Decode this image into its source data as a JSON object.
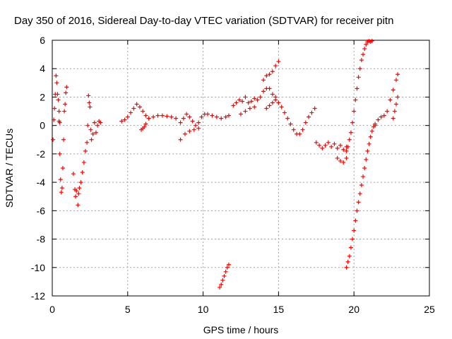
{
  "chart_data": {
    "type": "scatter",
    "title": "Day 350 of 2016, Sidereal Day-to-day VTEC variation (SDTVAR) for receiver pitn",
    "xlabel": "GPS time / hours",
    "ylabel": "SDTVAR / TECUs",
    "xlim": [
      0,
      25
    ],
    "ylim": [
      -12,
      6
    ],
    "xticks": [
      0,
      5,
      10,
      15,
      20,
      25
    ],
    "yticks": [
      -12,
      -10,
      -8,
      -6,
      -4,
      -2,
      0,
      2,
      4,
      6
    ],
    "grid": true,
    "marker": "+",
    "color": "#ff0000",
    "series": [
      {
        "name": "seg1",
        "x": [
          0.05,
          0.1,
          0.15,
          0.2,
          0.25,
          0.3,
          0.35,
          0.4,
          0.45,
          0.5
        ],
        "y": [
          -1.0,
          0.4,
          1.2,
          2.2,
          3.5,
          3.0,
          2.2,
          1.8,
          1.0,
          0.2
        ]
      },
      {
        "name": "seg2",
        "x": [
          0.45,
          0.5,
          0.55,
          0.6,
          0.65,
          0.7,
          0.75,
          0.8
        ],
        "y": [
          0.3,
          -2.0,
          -3.8,
          -4.7,
          -4.4,
          -3.0,
          -1.0,
          1.0
        ]
      },
      {
        "name": "seg3",
        "x": [
          0.85,
          0.9,
          0.95
        ],
        "y": [
          1.5,
          2.3,
          2.7
        ]
      },
      {
        "name": "seg4",
        "x": [
          1.4,
          1.5,
          1.55,
          1.6,
          1.7,
          1.75,
          1.8,
          1.9,
          2.0,
          2.1,
          2.2,
          2.3,
          2.35
        ],
        "y": [
          -3.4,
          -4.5,
          -5.0,
          -4.6,
          -5.6,
          -4.8,
          -4.4,
          -4.0,
          -3.3,
          -2.6,
          -1.8,
          -1.2,
          0.0
        ]
      },
      {
        "name": "seg5",
        "x": [
          2.4,
          2.45,
          2.5,
          2.55,
          2.6,
          2.7,
          2.8,
          2.9,
          3.0,
          3.1,
          3.2
        ],
        "y": [
          2.1,
          1.6,
          1.3,
          -0.3,
          -1.0,
          -0.6,
          0.2,
          -0.5,
          0.0,
          0.3,
          0.2
        ]
      },
      {
        "name": "seg6",
        "x": [
          4.6,
          4.8,
          5.0,
          5.2,
          5.4,
          5.6,
          5.8,
          6.0,
          6.2,
          6.4
        ],
        "y": [
          0.3,
          0.4,
          0.6,
          0.9,
          1.2,
          1.5,
          1.3,
          1.0,
          0.7,
          0.5
        ]
      },
      {
        "name": "seg7",
        "x": [
          5.9,
          6.0,
          6.1,
          6.2
        ],
        "y": [
          -0.3,
          -0.2,
          -0.1,
          0.1
        ]
      },
      {
        "name": "seg8",
        "x": [
          6.4,
          6.7,
          7.0,
          7.3,
          7.6,
          7.9,
          8.2,
          8.5,
          8.7,
          8.9,
          9.1,
          9.3,
          9.5,
          9.7,
          9.9,
          10.1,
          10.3,
          10.6,
          10.9,
          11.2,
          11.5,
          11.7
        ],
        "y": [
          0.5,
          0.6,
          0.7,
          0.7,
          0.65,
          0.6,
          0.5,
          0.2,
          0.5,
          0.8,
          0.6,
          0.3,
          0.0,
          0.2,
          0.6,
          0.8,
          0.8,
          0.7,
          0.6,
          0.5,
          0.6,
          0.7
        ]
      },
      {
        "name": "seg9",
        "x": [
          8.5,
          8.8,
          9.1,
          9.4,
          9.7
        ],
        "y": [
          -1.0,
          -0.6,
          -0.4,
          -0.3,
          -0.2
        ]
      },
      {
        "name": "seg10",
        "x": [
          11.1,
          11.2,
          11.3,
          11.4,
          11.5,
          11.6,
          11.7
        ],
        "y": [
          -11.4,
          -11.2,
          -10.9,
          -10.6,
          -10.3,
          -10.0,
          -9.8
        ]
      },
      {
        "name": "seg11",
        "x": [
          12.0,
          12.2,
          12.4,
          12.6,
          12.8,
          13.0,
          13.2,
          13.4,
          13.6,
          13.8,
          14.0,
          14.2,
          14.4,
          14.6,
          14.8,
          15.0
        ],
        "y": [
          1.4,
          1.6,
          1.8,
          1.7,
          2.0,
          1.6,
          1.7,
          1.9,
          1.8,
          2.0,
          2.4,
          2.6,
          2.6,
          2.2,
          2.0,
          1.6
        ]
      },
      {
        "name": "seg12",
        "x": [
          12.5,
          12.8,
          13.1,
          13.4
        ],
        "y": [
          0.8,
          1.0,
          1.2,
          1.3
        ]
      },
      {
        "name": "seg13",
        "x": [
          14.0,
          14.2,
          14.4,
          14.6,
          14.8,
          15.0
        ],
        "y": [
          3.2,
          3.5,
          3.6,
          3.8,
          4.2,
          4.5
        ]
      },
      {
        "name": "seg14",
        "x": [
          14.2,
          14.4,
          14.6,
          14.8,
          15.0,
          15.2,
          15.4,
          15.6,
          15.8,
          16.0,
          16.2,
          16.4,
          16.6,
          16.8,
          17.0,
          17.2,
          17.4
        ],
        "y": [
          1.2,
          1.4,
          1.6,
          1.8,
          1.6,
          1.3,
          0.9,
          0.5,
          0.1,
          -0.3,
          -0.6,
          -0.6,
          -0.3,
          0.2,
          0.6,
          0.9,
          1.2
        ]
      },
      {
        "name": "seg15",
        "x": [
          17.5,
          17.7,
          17.9,
          18.1,
          18.3,
          18.5,
          18.7,
          18.9,
          19.1,
          19.3,
          19.5
        ],
        "y": [
          -1.2,
          -1.4,
          -1.6,
          -1.4,
          -1.2,
          -1.5,
          -1.3,
          -1.6,
          -1.4,
          -1.7,
          -1.5
        ]
      },
      {
        "name": "seg16",
        "x": [
          18.9,
          19.1,
          19.3,
          19.5
        ],
        "y": [
          -2.3,
          -2.5,
          -2.6,
          -2.3
        ]
      },
      {
        "name": "seg17",
        "x": [
          19.5,
          19.6,
          19.7,
          19.8,
          19.9,
          20.0,
          20.1,
          20.2,
          20.3,
          20.4,
          20.5,
          20.6,
          20.7,
          20.8,
          20.9,
          21.0,
          21.1,
          21.2
        ],
        "y": [
          -1.8,
          -1.5,
          -1.0,
          -0.5,
          0.2,
          1.0,
          1.8,
          2.6,
          3.4,
          4.0,
          4.6,
          5.0,
          5.4,
          5.7,
          5.9,
          5.95,
          5.9,
          5.95
        ]
      },
      {
        "name": "seg18",
        "x": [
          19.5,
          19.6,
          19.7,
          19.8,
          19.9,
          20.0,
          20.1,
          20.2,
          20.3,
          20.4,
          20.5,
          20.6,
          20.7,
          20.8,
          20.9,
          21.0,
          21.1,
          21.2,
          21.3,
          21.4
        ],
        "y": [
          -10.0,
          -9.6,
          -9.2,
          -8.6,
          -8.0,
          -7.4,
          -6.7,
          -6.0,
          -5.4,
          -4.8,
          -4.2,
          -3.6,
          -3.0,
          -2.4,
          -1.8,
          -1.3,
          -0.8,
          -0.4,
          -0.1,
          0.0
        ]
      },
      {
        "name": "seg19",
        "x": [
          21.4,
          21.6,
          21.8,
          22.0,
          22.2,
          22.4,
          22.6,
          22.8,
          22.9
        ],
        "y": [
          0.1,
          0.4,
          0.6,
          0.7,
          1.0,
          1.8,
          2.5,
          3.2,
          3.6
        ]
      },
      {
        "name": "seg20",
        "x": [
          22.6,
          22.7,
          22.8,
          22.9
        ],
        "y": [
          0.5,
          1.0,
          1.5,
          2.0
        ]
      }
    ]
  }
}
